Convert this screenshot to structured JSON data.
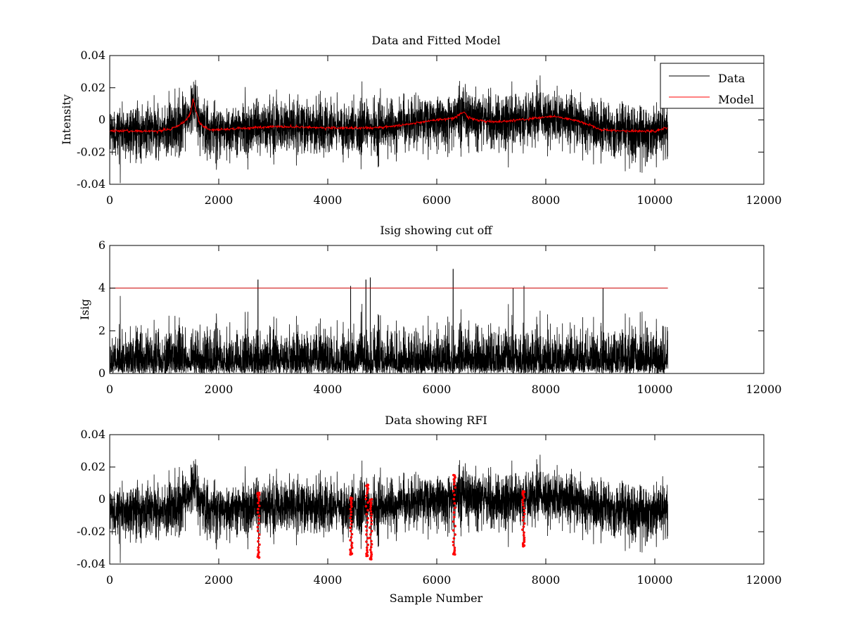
{
  "colors": {
    "data": "#000000",
    "model": "#ff0000",
    "cutoff": "#cc0000",
    "rfi": "#ff0000"
  },
  "xlabel_common": "Sample Number",
  "chart_data": [
    {
      "type": "line",
      "title": "Data and Fitted Model",
      "xlabel": "",
      "ylabel": "Intensity",
      "xlim": [
        0,
        12000
      ],
      "ylim": [
        -0.04,
        0.04
      ],
      "xticks": [
        0,
        2000,
        4000,
        6000,
        8000,
        10000,
        12000
      ],
      "xtick_labels": [
        "0",
        "2000",
        "4000",
        "6000",
        "8000",
        "10000",
        "12000"
      ],
      "yticks": [
        -0.04,
        -0.02,
        0,
        0.02,
        0.04
      ],
      "ytick_labels": [
        "-0.04",
        "-0.02",
        "0",
        "0.02",
        "0.04"
      ],
      "legend": {
        "position": "top-right",
        "entries": [
          "Data",
          "Model"
        ]
      },
      "noise": {
        "n_samples": 10240,
        "sigma": 0.008
      },
      "series": [
        {
          "name": "Model",
          "color": "#ff0000",
          "x": [
            0,
            800,
            1100,
            1300,
            1400,
            1480,
            1530,
            1580,
            1650,
            1800,
            2000,
            2600,
            3000,
            4000,
            4800,
            5200,
            5600,
            6000,
            6300,
            6450,
            6500,
            6560,
            6700,
            7000,
            7200,
            7500,
            7800,
            8000,
            8200,
            8500,
            8800,
            9000,
            9500,
            10000,
            10200
          ],
          "y": [
            -0.007,
            -0.007,
            -0.006,
            -0.003,
            0.0,
            0.004,
            0.013,
            0.006,
            -0.002,
            -0.006,
            -0.006,
            -0.005,
            -0.004,
            -0.005,
            -0.005,
            -0.004,
            -0.002,
            0.0,
            0.001,
            0.004,
            0.005,
            0.002,
            0.0,
            -0.001,
            -0.001,
            0.0,
            0.001,
            0.002,
            0.002,
            0.0,
            -0.003,
            -0.006,
            -0.007,
            -0.007,
            -0.005
          ]
        }
      ]
    },
    {
      "type": "line",
      "title": "Isig showing cut off",
      "xlabel": "",
      "ylabel": "Isig",
      "xlim": [
        0,
        12000
      ],
      "ylim": [
        0,
        6
      ],
      "xticks": [
        0,
        2000,
        4000,
        6000,
        8000,
        10000,
        12000
      ],
      "xtick_labels": [
        "0",
        "2000",
        "4000",
        "6000",
        "8000",
        "10000",
        "12000"
      ],
      "yticks": [
        0,
        2,
        4,
        6
      ],
      "ytick_labels": [
        "0",
        "2",
        "4",
        "6"
      ],
      "cutoff": 4,
      "spikes": [
        {
          "x": 2720,
          "y": 4.4
        },
        {
          "x": 4420,
          "y": 4.1
        },
        {
          "x": 4700,
          "y": 4.4
        },
        {
          "x": 4780,
          "y": 4.5
        },
        {
          "x": 6300,
          "y": 4.9
        },
        {
          "x": 7400,
          "y": 4.0
        },
        {
          "x": 7600,
          "y": 4.1
        },
        {
          "x": 9050,
          "y": 4.0
        }
      ]
    },
    {
      "type": "scatter",
      "title": "Data showing RFI",
      "xlabel": "Sample Number",
      "ylabel": "",
      "xlim": [
        0,
        12000
      ],
      "ylim": [
        -0.04,
        0.04
      ],
      "xticks": [
        0,
        2000,
        4000,
        6000,
        8000,
        10000,
        12000
      ],
      "xtick_labels": [
        "0",
        "2000",
        "4000",
        "6000",
        "8000",
        "10000",
        "12000"
      ],
      "yticks": [
        -0.04,
        -0.02,
        0,
        0.02,
        0.04
      ],
      "ytick_labels": [
        "-0.04",
        "-0.02",
        "0",
        "0.02",
        "0.04"
      ],
      "rfi_clusters": [
        {
          "x": 2730,
          "ymin": -0.036,
          "ymax": 0.004
        },
        {
          "x": 4430,
          "ymin": -0.034,
          "ymax": 0.001
        },
        {
          "x": 4720,
          "ymin": -0.035,
          "ymax": 0.009
        },
        {
          "x": 4790,
          "ymin": -0.037,
          "ymax": 0.0
        },
        {
          "x": 6320,
          "ymin": -0.034,
          "ymax": 0.015
        },
        {
          "x": 7590,
          "ymin": -0.029,
          "ymax": 0.005
        }
      ]
    }
  ]
}
